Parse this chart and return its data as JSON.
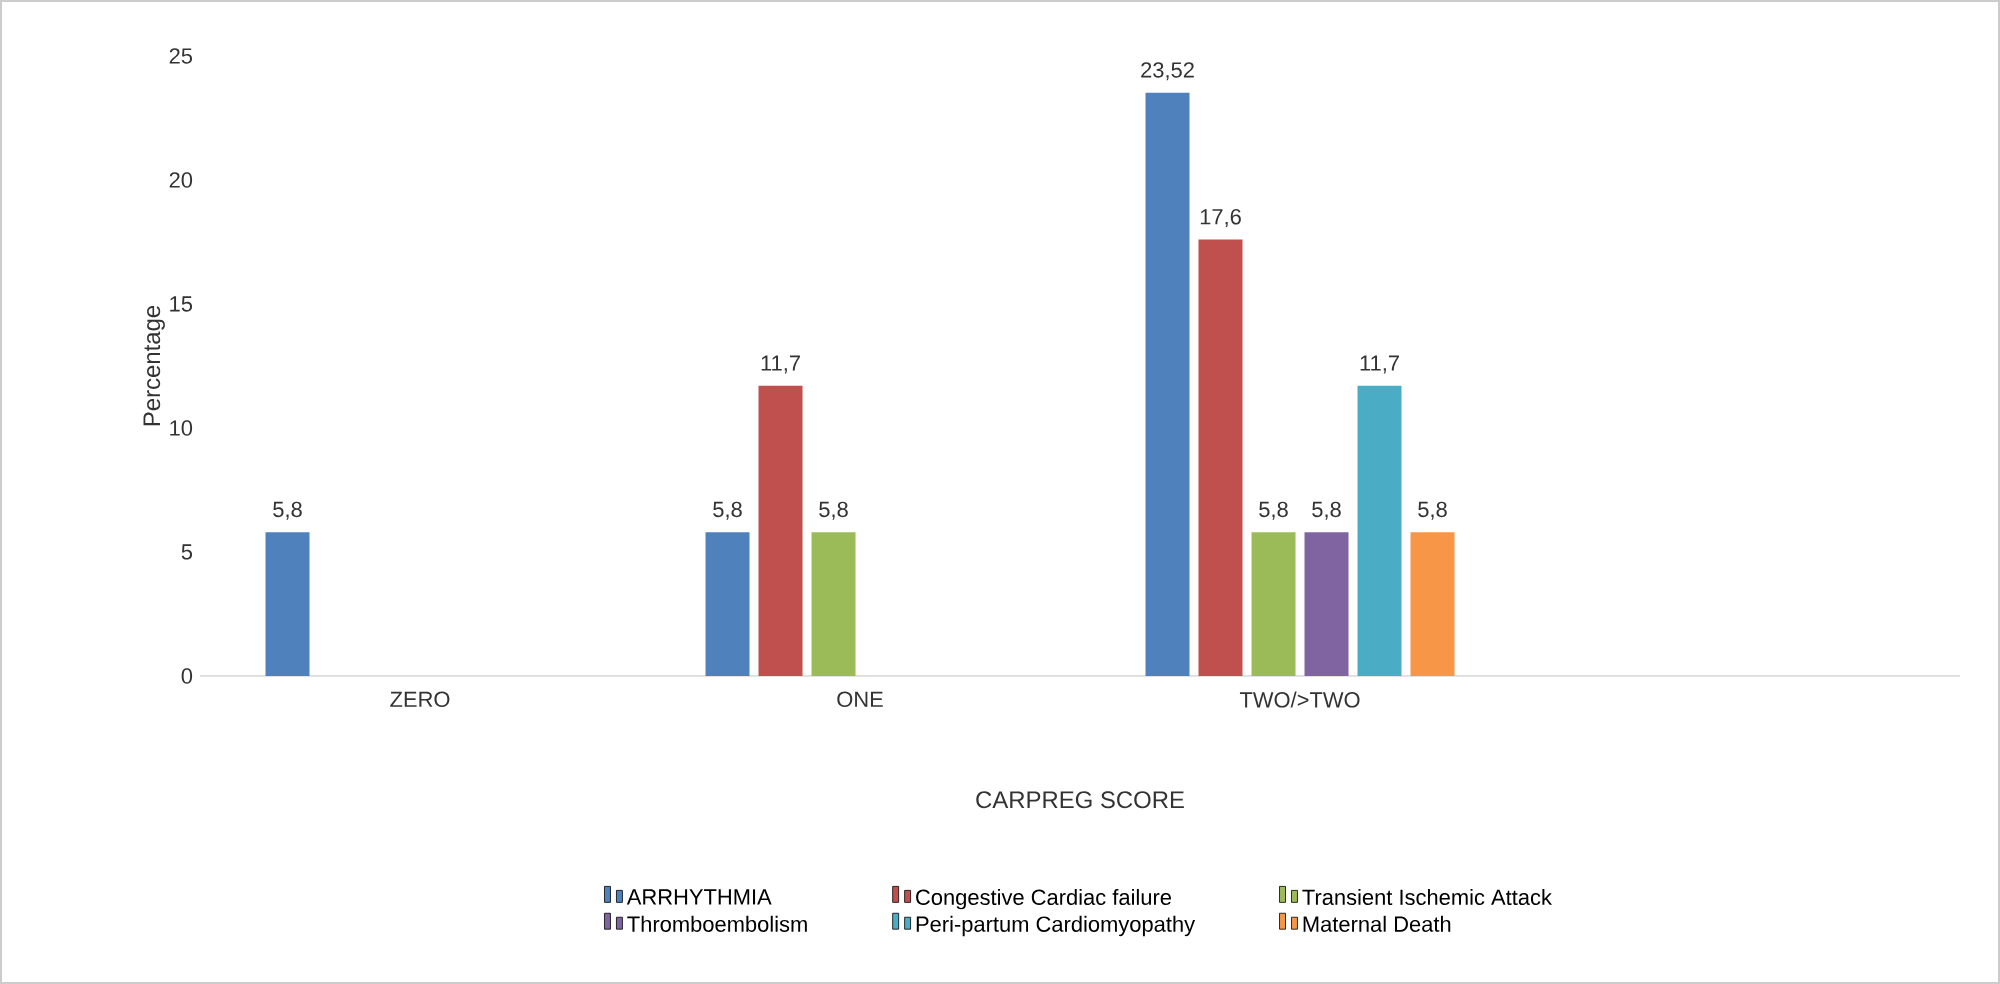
{
  "chart_data": {
    "type": "bar",
    "xlabel": "CARPREG SCORE",
    "ylabel": "Percentage",
    "categories": [
      "ZERO",
      "ONE",
      "TWO/>TWO",
      null
    ],
    "series": [
      {
        "name": "ARRHYTHMIA",
        "color": "#4f81bd",
        "values": [
          5.8,
          5.8,
          23.52,
          null
        ],
        "value_labels": [
          "5,8",
          "5,8",
          "23,52",
          null
        ]
      },
      {
        "name": "Congestive Cardiac failure",
        "color": "#c0504d",
        "values": [
          null,
          11.7,
          17.6,
          null
        ],
        "value_labels": [
          null,
          "11,7",
          "17,6",
          null
        ]
      },
      {
        "name": "Transient Ischemic Attack",
        "color": "#9bbb59",
        "values": [
          null,
          5.8,
          5.8,
          null
        ],
        "value_labels": [
          null,
          "5,8",
          "5,8",
          null
        ]
      },
      {
        "name": "Thromboembolism",
        "color": "#8064a2",
        "values": [
          null,
          null,
          5.8,
          null
        ],
        "value_labels": [
          null,
          null,
          "5,8",
          null
        ]
      },
      {
        "name": "Peri-partum Cardiomyopathy",
        "color": "#4bacc6",
        "values": [
          null,
          null,
          11.7,
          null
        ],
        "value_labels": [
          null,
          null,
          "11,7",
          null
        ]
      },
      {
        "name": "Maternal Death",
        "color": "#f79646",
        "values": [
          null,
          null,
          5.8,
          null
        ],
        "value_labels": [
          null,
          null,
          "5,8",
          null
        ]
      }
    ],
    "ylim": [
      0,
      25
    ],
    "yticks": [
      0,
      5,
      10,
      15,
      20,
      25
    ],
    "grid": false,
    "legend": "bottom"
  }
}
